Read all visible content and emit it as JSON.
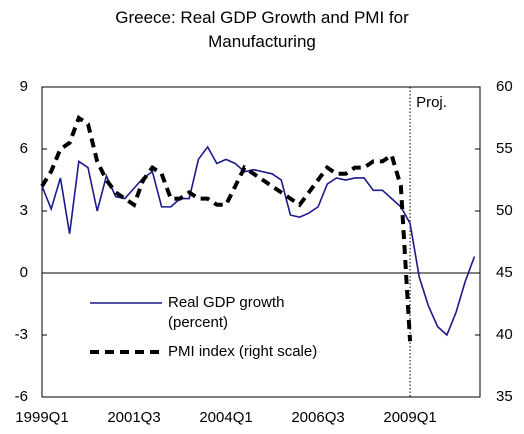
{
  "chart_data": {
    "type": "line",
    "title": "Greece: Real GDP Growth and PMI for Manufacturing",
    "categories": [
      "1999Q1",
      null,
      null,
      null,
      null,
      null,
      null,
      null,
      null,
      null,
      "2001Q3",
      null,
      null,
      null,
      null,
      null,
      null,
      null,
      null,
      null,
      "2004Q1",
      null,
      null,
      null,
      null,
      null,
      null,
      null,
      null,
      null,
      "2006Q3",
      null,
      null,
      null,
      null,
      null,
      null,
      null,
      null,
      null,
      "2009Q1",
      null,
      null,
      null,
      null,
      null,
      null,
      null
    ],
    "series": [
      {
        "name": "Real GDP growth (percent)",
        "color": "#1a1a8c",
        "style": "solid",
        "values": [
          4.2,
          3.1,
          4.6,
          1.9,
          5.4,
          5.1,
          3.0,
          4.7,
          3.7,
          3.6,
          4.1,
          4.6,
          4.9,
          3.2,
          3.2,
          3.6,
          3.6,
          5.5,
          6.1,
          5.3,
          5.5,
          5.3,
          4.9,
          5.0,
          4.9,
          4.8,
          4.5,
          2.8,
          2.7,
          2.9,
          3.2,
          4.3,
          4.6,
          4.5,
          4.6,
          4.6,
          4.0,
          4.0,
          3.6,
          3.2,
          2.4,
          -0.2,
          -1.6,
          -2.6,
          -3.0,
          -1.9,
          -0.4,
          0.8
        ]
      },
      {
        "name": "PMI index (right scale)",
        "color": "#000000",
        "style": "dashed",
        "axis": "y2",
        "values": [
          52.0,
          53.2,
          55.0,
          55.5,
          57.5,
          57.0,
          54.0,
          52.5,
          51.5,
          51.0,
          50.5,
          52.5,
          53.5,
          53.0,
          51.0,
          51.0,
          51.5,
          51.0,
          51.0,
          50.5,
          50.5,
          52.0,
          53.5,
          53.0,
          52.5,
          52.0,
          51.5,
          51.0,
          50.5,
          51.5,
          52.5,
          53.5,
          53.0,
          53.0,
          53.5,
          53.5,
          54.0,
          54.0,
          54.5,
          52.0,
          39.5,
          null,
          null,
          null,
          null,
          null,
          null,
          null
        ]
      }
    ],
    "ylim": [
      -6,
      9
    ],
    "yticks": [
      -6,
      -3,
      0,
      3,
      6,
      9
    ],
    "y2lim": [
      35,
      60
    ],
    "y2ticks": [
      35,
      40,
      45,
      50,
      55,
      60
    ],
    "zero_line": true,
    "annotation": "Proj.",
    "projection_start": "2009Q1"
  }
}
